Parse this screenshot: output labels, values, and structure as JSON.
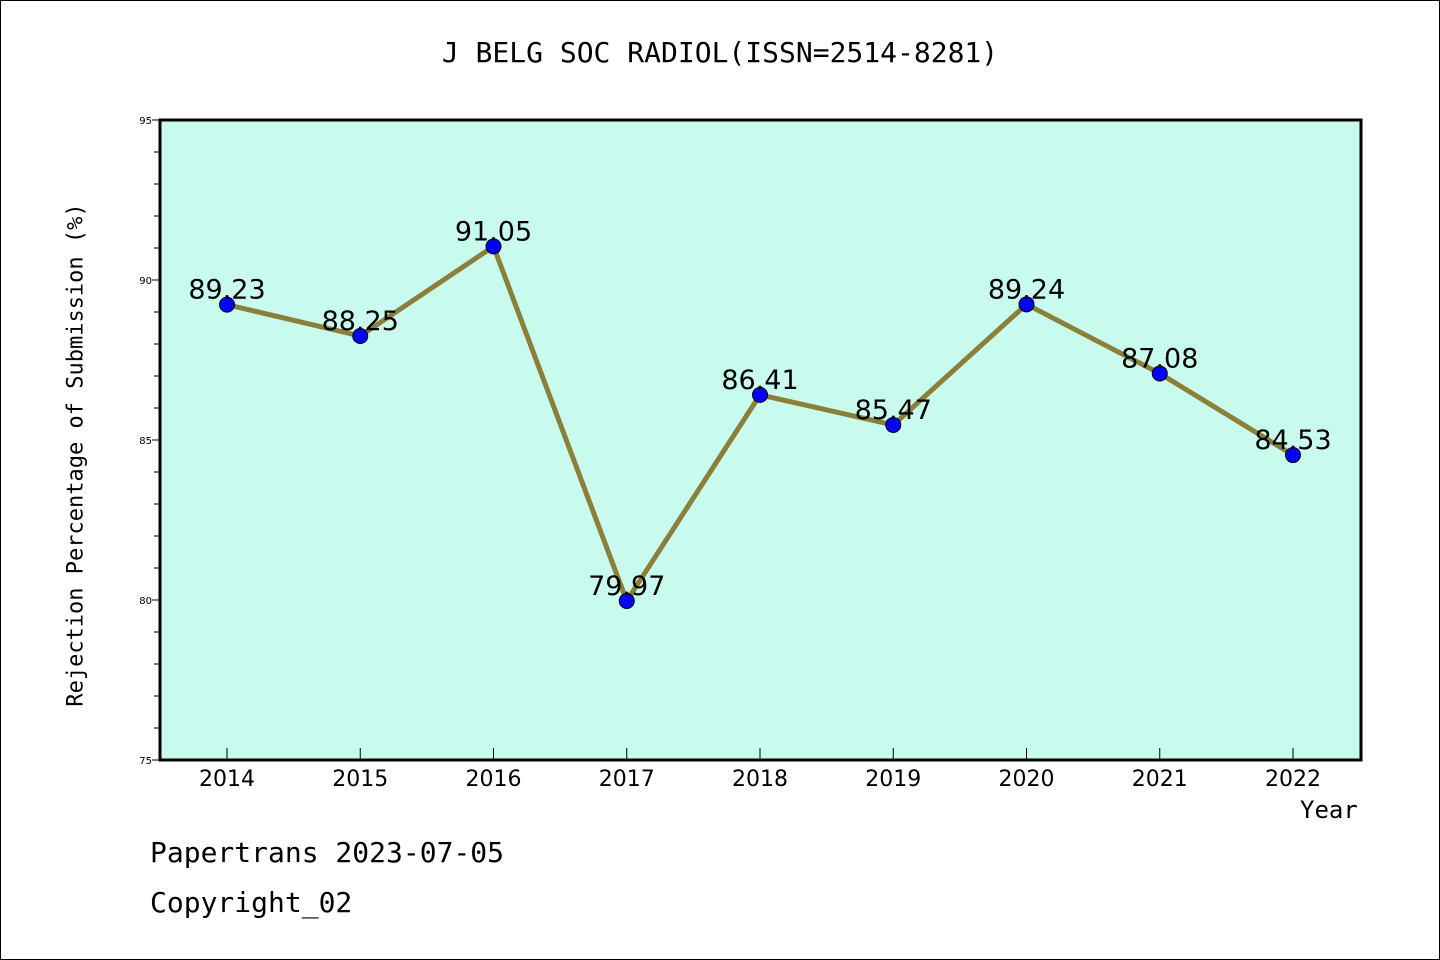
{
  "chart_data": {
    "type": "line",
    "title": "J BELG SOC RADIOL(ISSN=2514-8281)",
    "xlabel": "Year",
    "ylabel": "Rejection Percentage of Submission (%)",
    "categories": [
      "2014",
      "2015",
      "2016",
      "2017",
      "2018",
      "2019",
      "2020",
      "2021",
      "2022"
    ],
    "values": [
      89.23,
      88.25,
      91.05,
      79.97,
      86.41,
      85.47,
      89.24,
      87.08,
      84.53
    ],
    "data_labels": [
      "89.23",
      "88.25",
      "91.05",
      "79.97",
      "86.41",
      "85.47",
      "89.24",
      "87.08",
      "84.53"
    ],
    "ylim": [
      75,
      95
    ],
    "yticks": [
      "75",
      "80",
      "85",
      "90",
      "95"
    ],
    "grid": false,
    "colors": {
      "plot_background": "#c8fbee",
      "line": "#8b7f3a",
      "marker": "#0000ff"
    }
  },
  "footer": {
    "line1": "Papertrans 2023-07-05",
    "line2": "Copyright_02"
  }
}
